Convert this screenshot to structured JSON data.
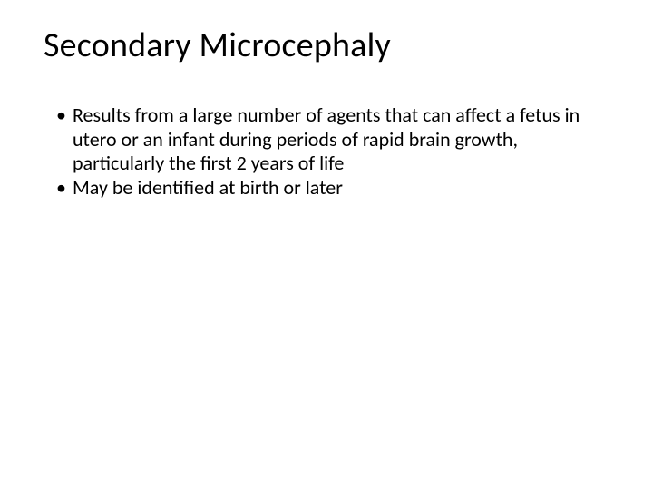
{
  "slide": {
    "background_color": "#ffffff",
    "text_color": "#000000",
    "title": {
      "text": "Secondary Microcephaly",
      "fontsize_pt": 38,
      "font_weight": 400,
      "font_family": "Calibri Light"
    },
    "bullets": {
      "fontsize_pt": 22,
      "bullet_char": "•",
      "items": [
        "Results from a large number of agents that can affect a fetus in utero or an infant during periods of rapid brain growth, particularly the first 2 years of life",
        "May be identified at birth or later"
      ]
    }
  }
}
